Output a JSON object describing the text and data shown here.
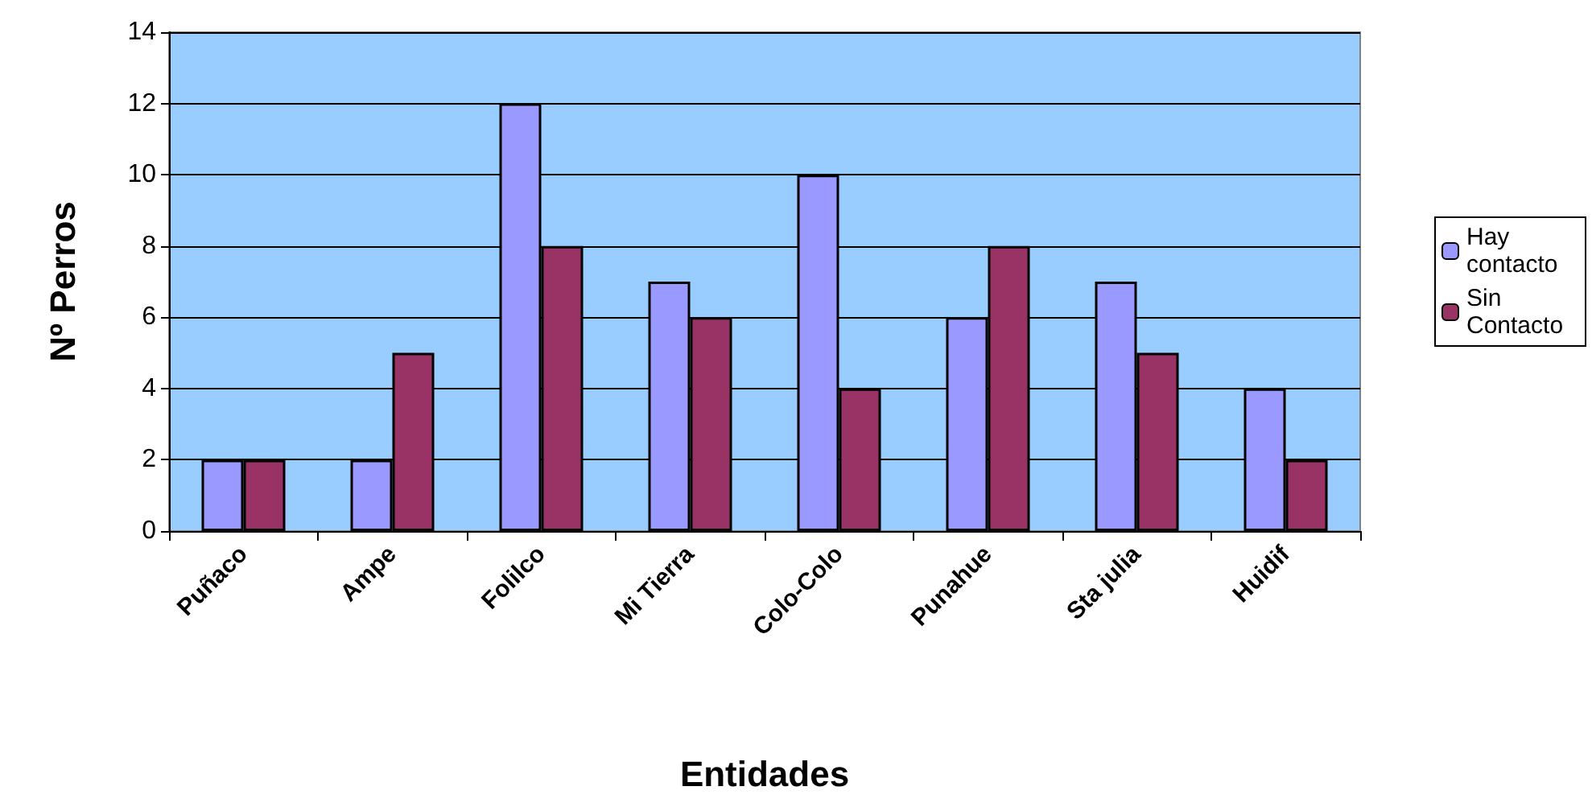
{
  "chart_data": {
    "type": "bar",
    "xlabel": "Entidades",
    "ylabel": "Nº Perros",
    "categories": [
      "Puñaco",
      "Ampe",
      "Folilco",
      "Mi Tierra",
      "Colo-Colo",
      "Punahue",
      "Sta julia",
      "Huidif"
    ],
    "series": [
      {
        "name": "Hay contacto",
        "color": "#9999ff",
        "values": [
          2,
          2,
          12,
          7,
          10,
          6,
          7,
          4
        ]
      },
      {
        "name": "Sin Contacto",
        "color": "#993366",
        "values": [
          2,
          5,
          8,
          6,
          4,
          8,
          5,
          2
        ]
      }
    ],
    "ylim": [
      0,
      14
    ],
    "yticks": [
      0,
      2,
      4,
      6,
      8,
      10,
      12,
      14
    ],
    "grid": "y",
    "legend": "right"
  }
}
